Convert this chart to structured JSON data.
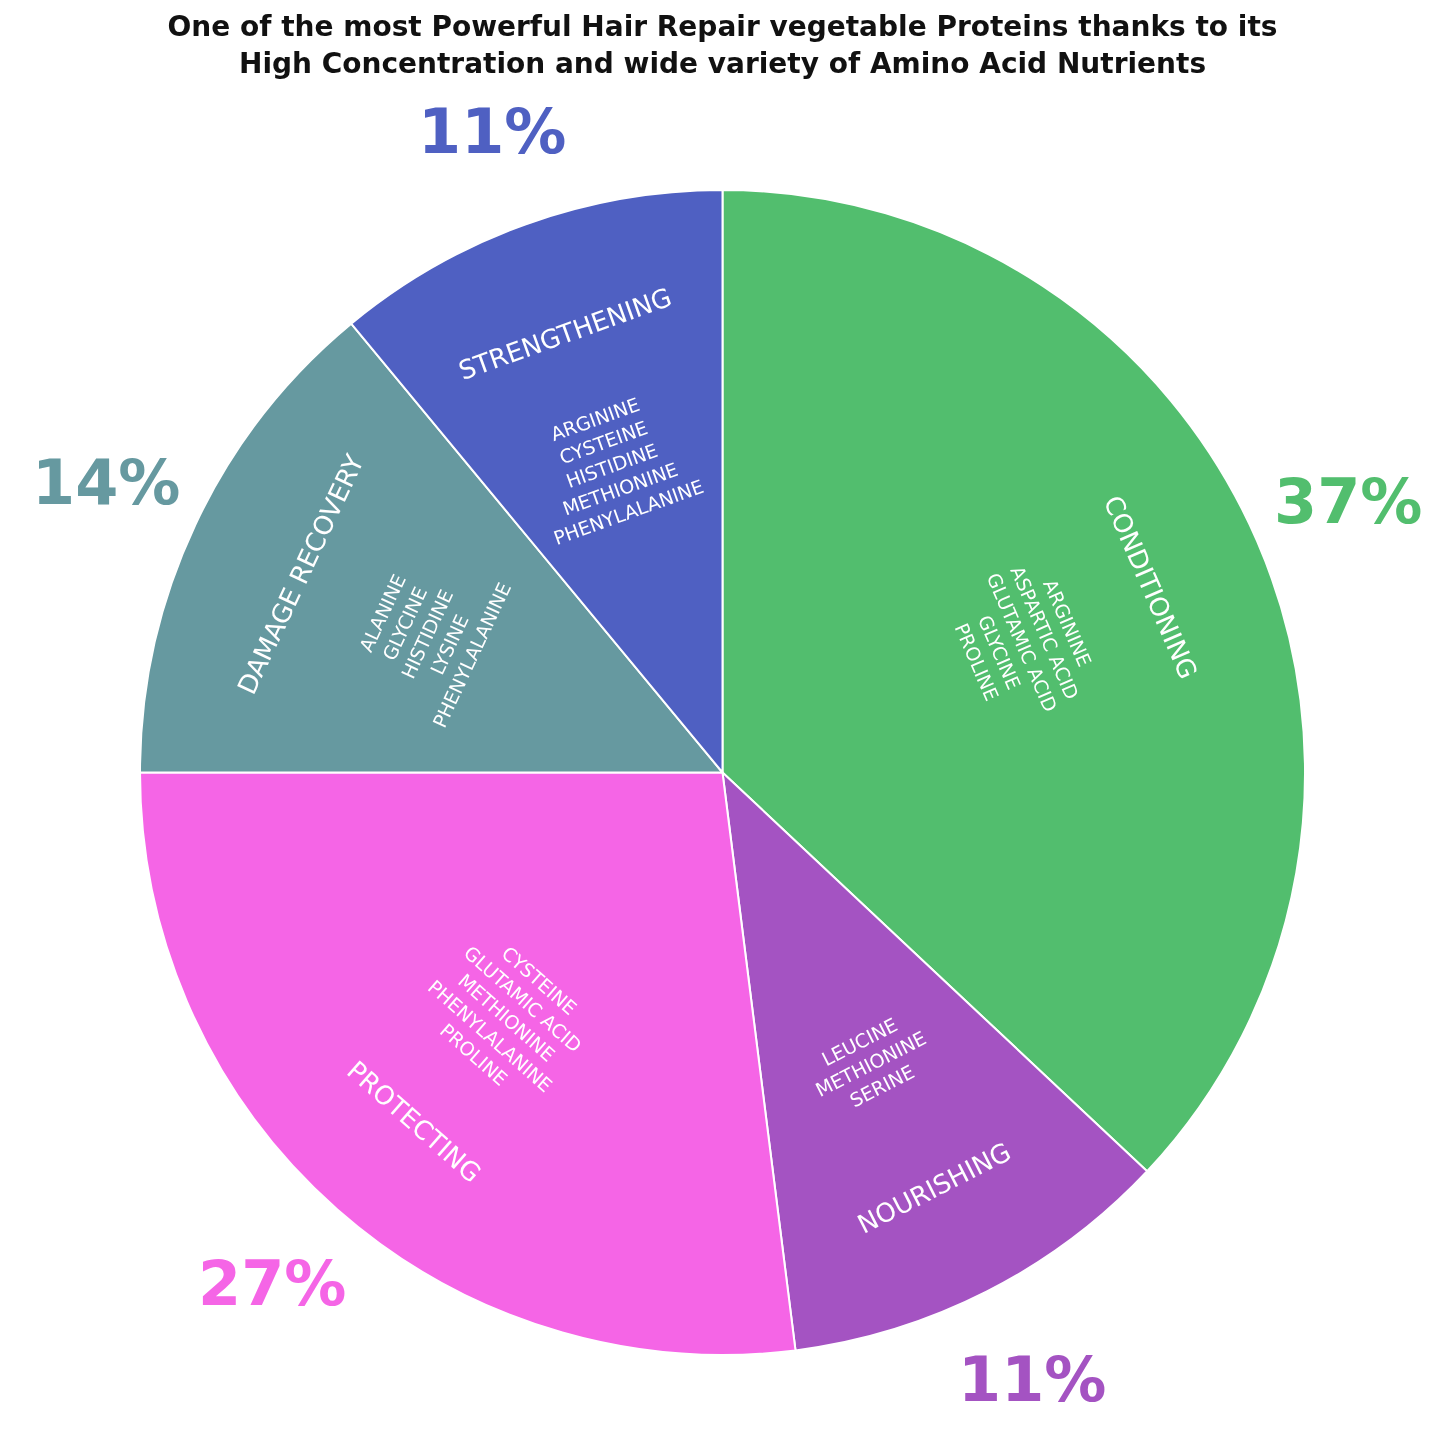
{
  "chart_data": {
    "type": "pie",
    "title": "One of the most Powerful Hair Repair vegetable Proteins thanks to its\nHigh Concentration and wide variety of Amino Acid Nutrients",
    "categories": [
      "CONDITIONING",
      "NOURISHING",
      "PROTECTING",
      "DAMAGE RECOVERY",
      "STRENGTHENING"
    ],
    "values": [
      37,
      11,
      27,
      14,
      11
    ],
    "value_labels": [
      "37%",
      "11%",
      "27%",
      "14%",
      "11%"
    ],
    "colors": [
      "#52be6e",
      "#a453c2",
      "#f565e6",
      "#6699a0",
      "#4f60c2"
    ],
    "annotations": [
      "ARGININE\nASPARTIC ACID\nGLUTAMIC ACID\nGLYCINE\nPROLINE",
      "LEUCINE\nMETHIONINE\nSERINE",
      "CYSTEINE\nGLUTAMIC ACID\nMETHIONINE\nPHENYLALANINE\nPROLINE",
      "ALANINE\nGLYCINE\nHISTIDINE\nLYSINE\nPHENYLALANINE",
      "ARGININE\nCYSTEINE\nHISTIDINE\nMETHIONINE\nPHENYLALANINE"
    ],
    "legend": false
  }
}
